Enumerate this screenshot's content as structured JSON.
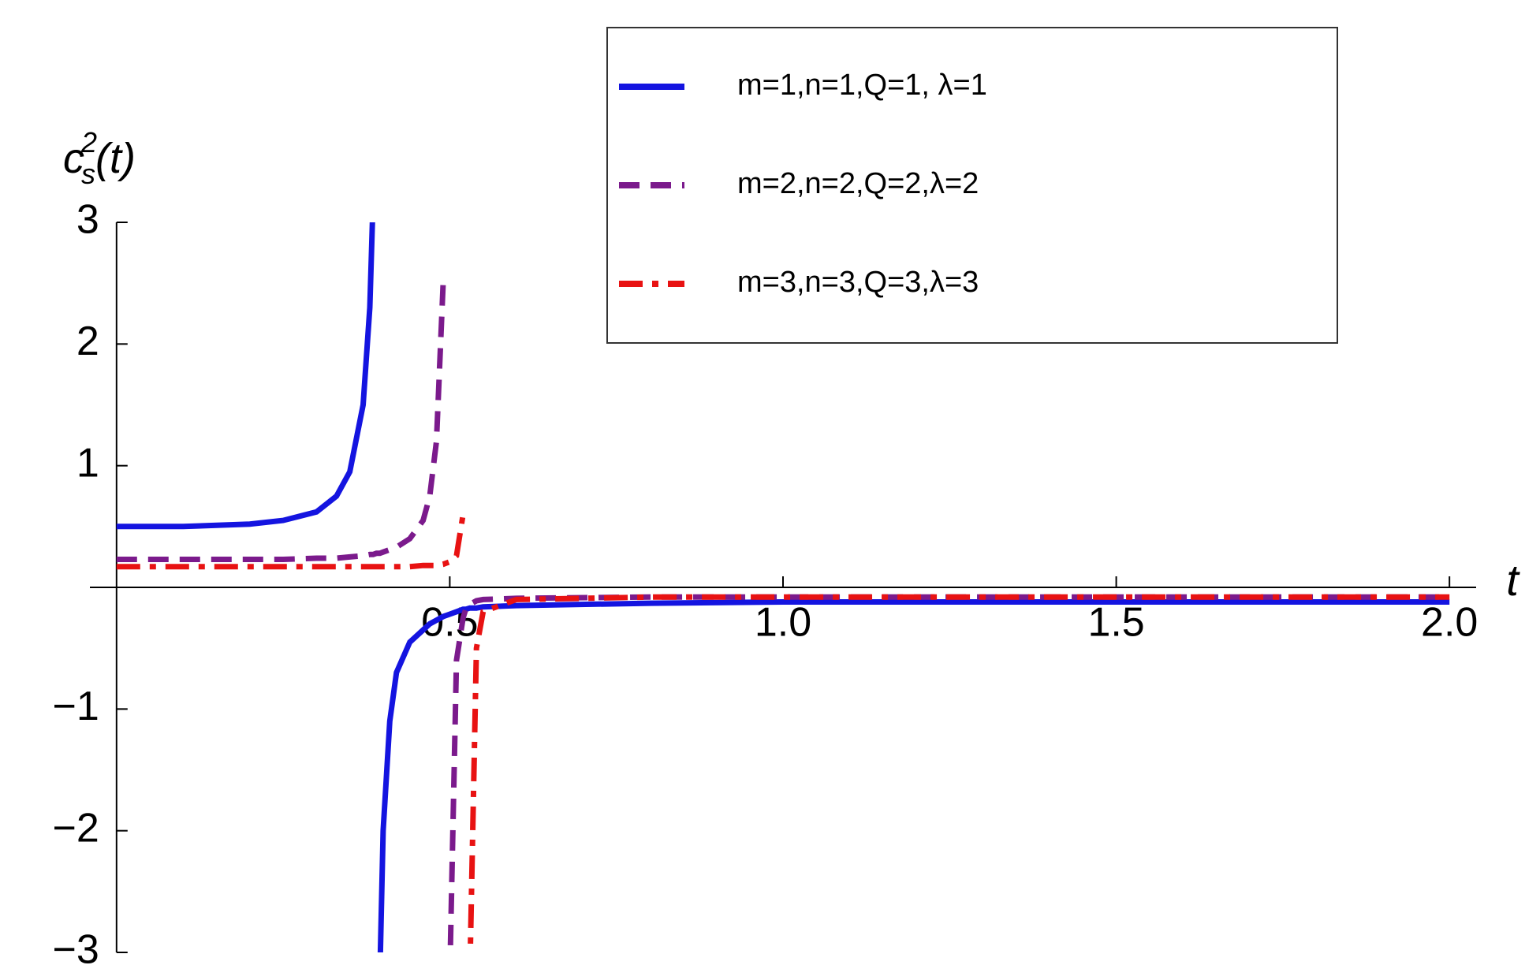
{
  "chart_data": {
    "type": "line",
    "xlabel": "t",
    "ylabel": {
      "base": "c",
      "sup": "2",
      "sub": "s",
      "rest": "(t)"
    },
    "x": [
      0,
      0.1,
      0.2,
      0.25,
      0.3,
      0.33,
      0.35,
      0.37,
      0.38,
      0.385,
      0.39,
      0.395,
      0.4,
      0.41,
      0.42,
      0.44,
      0.46,
      0.47,
      0.48,
      0.49,
      0.495,
      0.5,
      0.51,
      0.52,
      0.524,
      0.53,
      0.54,
      0.55,
      0.6,
      0.8,
      1.0,
      1.5,
      2.0
    ],
    "series": [
      {
        "name": "m=1,n=1,Q=1, λ=1",
        "color": "#1414e0",
        "dash": "solid",
        "values": [
          0.5,
          0.5,
          0.52,
          0.55,
          0.62,
          0.75,
          0.95,
          1.5,
          2.3,
          3.2,
          null,
          -3.2,
          -2.0,
          -1.1,
          -0.7,
          -0.45,
          -0.35,
          -0.3,
          -0.27,
          -0.24,
          -0.23,
          -0.22,
          -0.2,
          -0.18,
          -0.18,
          -0.17,
          -0.17,
          -0.16,
          -0.15,
          -0.13,
          -0.12,
          -0.12,
          -0.12
        ]
      },
      {
        "name": " m=2,n=2,Q=2,λ=2",
        "color": "#7b1a8c",
        "dash": "dashed",
        "values": [
          0.23,
          0.23,
          0.23,
          0.23,
          0.24,
          0.24,
          0.25,
          0.26,
          0.27,
          0.27,
          0.28,
          0.28,
          0.29,
          0.31,
          0.33,
          0.4,
          0.55,
          0.75,
          1.2,
          2.5,
          null,
          -3.2,
          -0.6,
          -0.25,
          -0.18,
          -0.14,
          -0.11,
          -0.1,
          -0.09,
          -0.08,
          -0.08,
          -0.08,
          -0.08
        ]
      },
      {
        "name": "m=3,n=3,Q=3,λ=3",
        "color": "#e81212",
        "dash": "dashdot",
        "values": [
          0.17,
          0.17,
          0.17,
          0.17,
          0.17,
          0.17,
          0.17,
          0.17,
          0.17,
          0.17,
          0.17,
          0.17,
          0.17,
          0.17,
          0.17,
          0.17,
          0.18,
          0.18,
          0.18,
          0.19,
          0.2,
          0.21,
          0.26,
          0.6,
          null,
          -3.2,
          -0.5,
          -0.2,
          -0.1,
          -0.08,
          -0.08,
          -0.08,
          -0.08
        ]
      }
    ],
    "xlim": [
      -0.04,
      2.04
    ],
    "ylim": [
      -3,
      3
    ],
    "xticks": [
      0.5,
      {
        "value": 1,
        "label": "1.0"
      },
      1.5,
      {
        "value": 2,
        "label": "2.0"
      }
    ],
    "yticks": [
      {
        "value": -3,
        "label": "−3"
      },
      {
        "value": -2,
        "label": "−2"
      },
      {
        "value": -1,
        "label": "−1"
      },
      1,
      2,
      3
    ],
    "legend": "top-right"
  }
}
